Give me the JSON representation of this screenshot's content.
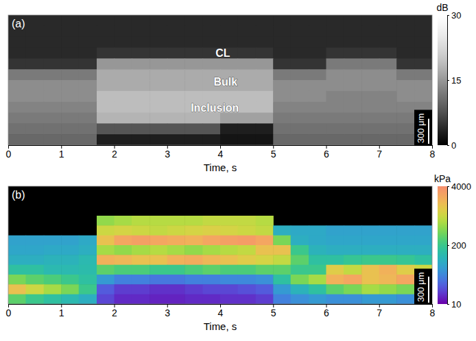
{
  "chart_data": [
    {
      "type": "heatmap",
      "panel_label": "(a)",
      "xlabel": "Time, s",
      "xlim": [
        0,
        8
      ],
      "xticks": [
        0,
        1,
        2,
        3,
        4,
        5,
        6,
        7,
        8
      ],
      "ylim": [
        0,
        1560
      ],
      "tick_labels": "x",
      "x_edges": [
        0,
        0.33,
        0.67,
        1,
        1.33,
        1.67,
        2,
        2.33,
        2.67,
        3,
        3.33,
        3.67,
        4,
        4.33,
        4.67,
        5,
        5.33,
        5.67,
        6,
        6.33,
        6.67,
        7,
        7.33,
        7.67,
        8
      ],
      "y_edges": [
        0,
        130,
        260,
        390,
        520,
        650,
        780,
        910,
        1040,
        1170,
        1300,
        1430,
        1560
      ],
      "cells": [
        [
          4,
          4,
          4,
          4,
          4,
          4,
          4,
          4,
          4,
          4,
          4,
          4,
          4,
          4,
          4,
          4,
          4,
          4,
          4,
          4,
          4,
          4,
          4,
          4
        ],
        [
          4,
          4,
          4,
          4,
          4,
          4,
          4,
          4,
          4,
          4,
          4,
          4,
          4,
          4,
          4,
          4,
          4,
          4,
          4,
          4,
          4,
          4,
          4,
          4
        ],
        [
          4,
          4,
          4,
          4,
          4,
          4,
          4,
          4,
          4,
          4,
          4,
          4,
          4,
          4,
          4,
          4,
          4,
          4,
          4,
          4,
          4,
          4,
          4,
          4
        ],
        [
          4,
          4,
          4,
          4,
          4,
          5,
          5,
          5,
          5,
          5,
          5,
          5,
          5,
          5,
          5,
          4,
          4,
          4,
          5,
          5,
          5,
          5,
          4,
          4
        ],
        [
          5,
          5,
          5,
          5,
          5,
          15,
          15,
          15,
          15,
          15,
          15,
          15,
          15,
          15,
          15,
          5,
          5,
          5,
          12,
          12,
          12,
          12,
          5,
          5
        ],
        [
          12,
          12,
          12,
          12,
          12,
          17,
          17,
          17,
          17,
          17,
          17,
          17,
          17,
          17,
          17,
          12,
          12,
          12,
          14,
          14,
          14,
          14,
          12,
          12
        ],
        [
          14,
          14,
          14,
          14,
          14,
          17,
          17,
          17,
          17,
          17,
          17,
          17,
          17,
          17,
          17,
          14,
          14,
          14,
          14,
          14,
          14,
          14,
          14,
          14
        ],
        [
          14,
          14,
          14,
          14,
          14,
          19,
          19,
          19,
          19,
          19,
          19,
          19,
          19,
          19,
          19,
          14,
          14,
          14,
          13,
          13,
          13,
          13,
          14,
          14
        ],
        [
          13,
          13,
          13,
          13,
          13,
          19,
          19,
          19,
          19,
          19,
          19,
          19,
          19,
          19,
          19,
          13,
          13,
          13,
          13,
          13,
          13,
          13,
          13,
          13
        ],
        [
          12,
          12,
          12,
          12,
          12,
          18,
          18,
          18,
          18,
          18,
          18,
          18,
          16,
          16,
          16,
          12,
          12,
          12,
          12,
          12,
          12,
          12,
          12,
          12
        ],
        [
          11,
          11,
          11,
          11,
          11,
          8,
          8,
          8,
          8,
          8,
          8,
          8,
          3,
          3,
          3,
          11,
          11,
          11,
          11,
          11,
          11,
          11,
          11,
          11
        ],
        [
          10,
          10,
          10,
          10,
          10,
          3,
          3,
          3,
          3,
          3,
          3,
          3,
          2,
          2,
          2,
          10,
          10,
          10,
          10,
          10,
          10,
          10,
          10,
          10
        ]
      ],
      "colorbar": {
        "label": "dB",
        "range": [
          0,
          30
        ],
        "ticks": [
          0,
          15,
          30
        ]
      },
      "annotations": [
        {
          "text": "CL",
          "x": 4.05,
          "y": 457
        },
        {
          "text": "Bulk",
          "x": 4.1,
          "y": 800
        },
        {
          "text": "Inclusion",
          "x": 3.9,
          "y": 1110
        }
      ],
      "scale_bar": {
        "value": 300,
        "label": "300 μm"
      }
    },
    {
      "type": "heatmap",
      "panel_label": "(b)",
      "xlabel": "Time, s",
      "xlim": [
        0,
        8
      ],
      "xticks": [
        0,
        1,
        2,
        3,
        4,
        5,
        6,
        7,
        8
      ],
      "ylim": [
        0,
        1360
      ],
      "tick_labels": "x",
      "x_edges": [
        0,
        0.33,
        0.67,
        1,
        1.33,
        1.67,
        2,
        2.33,
        2.67,
        3,
        3.33,
        3.67,
        4,
        4.33,
        4.67,
        5,
        5.33,
        5.67,
        6,
        6.33,
        6.67,
        7,
        7.33,
        7.67,
        8
      ],
      "y_edges": [
        0,
        113,
        227,
        340,
        453,
        567,
        680,
        793,
        907,
        1020,
        1133,
        1247,
        1360
      ],
      "cells": [
        [
          null,
          null,
          null,
          null,
          null,
          null,
          null,
          null,
          null,
          null,
          null,
          null,
          null,
          null,
          null,
          null,
          null,
          null,
          null,
          null,
          null,
          null,
          null,
          null
        ],
        [
          null,
          null,
          null,
          null,
          null,
          null,
          null,
          null,
          null,
          null,
          null,
          null,
          null,
          null,
          null,
          null,
          null,
          null,
          null,
          null,
          null,
          null,
          null,
          null
        ],
        [
          null,
          null,
          null,
          null,
          null,
          null,
          null,
          null,
          null,
          null,
          null,
          null,
          null,
          null,
          null,
          null,
          null,
          null,
          null,
          null,
          null,
          null,
          null,
          null
        ],
        [
          null,
          null,
          null,
          null,
          null,
          500,
          600,
          700,
          700,
          700,
          700,
          800,
          800,
          800,
          700,
          null,
          null,
          null,
          null,
          null,
          null,
          null,
          null,
          null
        ],
        [
          null,
          null,
          null,
          null,
          null,
          900,
          1000,
          900,
          800,
          900,
          1000,
          1100,
          1000,
          900,
          800,
          90,
          80,
          80,
          70,
          70,
          70,
          70,
          70,
          70
        ],
        [
          70,
          70,
          70,
          70,
          80,
          1500,
          2500,
          2800,
          2500,
          2200,
          2000,
          2500,
          2800,
          3000,
          2500,
          400,
          90,
          80,
          75,
          75,
          75,
          75,
          75,
          75
        ],
        [
          75,
          75,
          80,
          80,
          90,
          600,
          500,
          600,
          700,
          600,
          500,
          600,
          700,
          800,
          1500,
          1500,
          200,
          100,
          90,
          90,
          90,
          90,
          90,
          90
        ],
        [
          90,
          90,
          100,
          100,
          120,
          2000,
          1800,
          1500,
          1500,
          2000,
          2200,
          1800,
          1500,
          1200,
          1000,
          800,
          300,
          150,
          150,
          180,
          200,
          200,
          180,
          150
        ],
        [
          150,
          150,
          120,
          120,
          130,
          300,
          250,
          250,
          200,
          200,
          250,
          300,
          250,
          250,
          300,
          300,
          200,
          200,
          1200,
          800,
          1500,
          2000,
          1200,
          900
        ],
        [
          400,
          300,
          250,
          200,
          150,
          60,
          40,
          40,
          35,
          35,
          40,
          40,
          45,
          45,
          50,
          150,
          400,
          600,
          2000,
          2500,
          1500,
          1800,
          2500,
          2000
        ],
        [
          1500,
          900,
          600,
          400,
          200,
          25,
          18,
          18,
          16,
          16,
          18,
          20,
          20,
          22,
          25,
          60,
          100,
          150,
          300,
          400,
          600,
          500,
          400,
          300
        ],
        [
          300,
          200,
          150,
          120,
          90,
          20,
          15,
          15,
          14,
          14,
          15,
          15,
          16,
          16,
          18,
          40,
          50,
          60,
          50,
          50,
          60,
          60,
          50,
          50
        ]
      ],
      "colorbar": {
        "label": "kPa",
        "range": [
          10,
          4000
        ],
        "ticks": [
          10,
          200,
          4000
        ],
        "log": true
      },
      "scale_bar": {
        "value": 300,
        "label": "300 μm"
      }
    }
  ]
}
